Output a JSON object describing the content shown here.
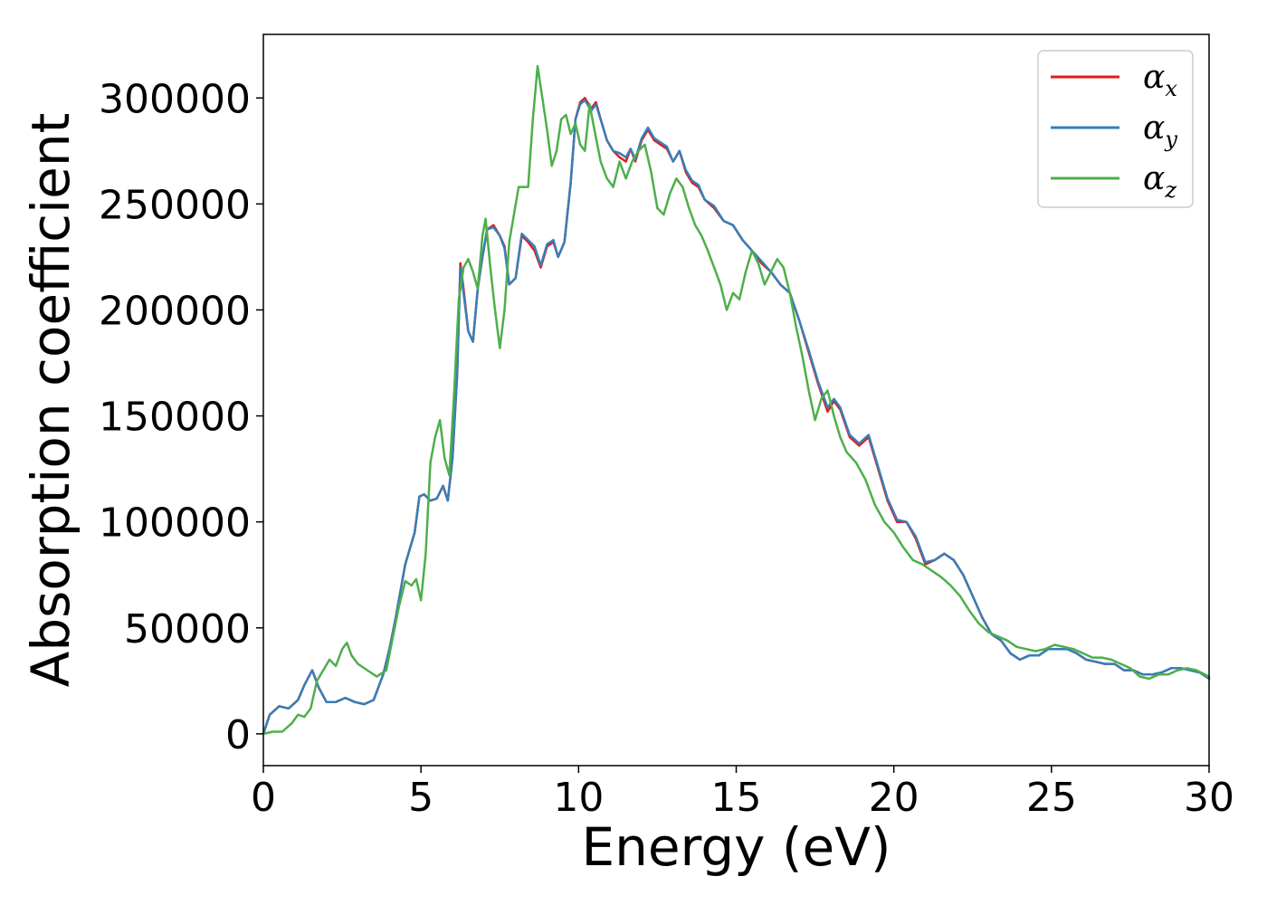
{
  "chart_data": {
    "type": "line",
    "title": "",
    "xlabel": "Energy (eV)",
    "ylabel": "Absorption coefficient",
    "xlim": [
      0,
      30
    ],
    "ylim": [
      -15000,
      330000
    ],
    "xticks": [
      "0",
      "5",
      "10",
      "15",
      "20",
      "25",
      "30"
    ],
    "yticks": [
      "0",
      "50000",
      "100000",
      "150000",
      "200000",
      "250000",
      "300000"
    ],
    "grid": false,
    "legend_position": "top-right",
    "series": [
      {
        "name": "α_x",
        "label_main": "α",
        "label_sub": "x",
        "color": "#e41a1c",
        "x": [
          0,
          0.2,
          0.5,
          0.8,
          1.1,
          1.3,
          1.55,
          1.75,
          2.0,
          2.3,
          2.6,
          2.9,
          3.2,
          3.5,
          3.8,
          4.0,
          4.2,
          4.5,
          4.8,
          4.95,
          5.1,
          5.3,
          5.5,
          5.7,
          5.85,
          6.0,
          6.15,
          6.25,
          6.35,
          6.5,
          6.65,
          6.8,
          6.95,
          7.1,
          7.3,
          7.5,
          7.65,
          7.8,
          8.0,
          8.2,
          8.4,
          8.6,
          8.8,
          9.0,
          9.2,
          9.35,
          9.55,
          9.75,
          9.9,
          10.05,
          10.2,
          10.4,
          10.55,
          10.7,
          10.9,
          11.1,
          11.3,
          11.5,
          11.65,
          11.8,
          12.0,
          12.2,
          12.4,
          12.6,
          12.8,
          13.0,
          13.2,
          13.4,
          13.6,
          13.8,
          14.0,
          14.3,
          14.6,
          14.9,
          15.2,
          15.5,
          15.8,
          16.1,
          16.4,
          16.7,
          17.0,
          17.3,
          17.6,
          17.9,
          18.1,
          18.3,
          18.6,
          18.9,
          19.2,
          19.5,
          19.8,
          20.1,
          20.4,
          20.7,
          21.0,
          21.3,
          21.6,
          21.9,
          22.2,
          22.5,
          22.8,
          23.1,
          23.4,
          23.7,
          24.0,
          24.3,
          24.6,
          24.9,
          25.2,
          25.5,
          25.8,
          26.1,
          26.4,
          26.7,
          27.0,
          27.3,
          27.6,
          27.9,
          28.2,
          28.5,
          28.8,
          29.1,
          29.4,
          29.7,
          30.0
        ],
        "y": [
          0,
          9000,
          13000,
          12000,
          16000,
          23000,
          30000,
          22000,
          15000,
          15000,
          17000,
          15000,
          14000,
          16000,
          28000,
          40000,
          55000,
          80000,
          95000,
          112000,
          113000,
          110000,
          111000,
          117000,
          110000,
          130000,
          170000,
          222000,
          210000,
          190000,
          185000,
          210000,
          225000,
          238000,
          240000,
          235000,
          230000,
          212000,
          215000,
          235000,
          232000,
          228000,
          220000,
          230000,
          232000,
          225000,
          232000,
          260000,
          290000,
          298000,
          300000,
          295000,
          298000,
          290000,
          280000,
          275000,
          272000,
          270000,
          276000,
          270000,
          280000,
          285000,
          280000,
          278000,
          276000,
          270000,
          275000,
          265000,
          260000,
          258000,
          252000,
          248000,
          242000,
          240000,
          233000,
          228000,
          222000,
          218000,
          212000,
          208000,
          195000,
          180000,
          165000,
          152000,
          157000,
          153000,
          140000,
          136000,
          140000,
          125000,
          110000,
          100000,
          100000,
          92000,
          80000,
          82000,
          85000,
          82000,
          75000,
          65000,
          55000,
          47000,
          44000,
          38000,
          35000,
          37000,
          37000,
          40000,
          40000,
          40000,
          38000,
          35000,
          34000,
          33000,
          33000,
          30000,
          30000,
          28000,
          28000,
          29000,
          31000,
          31000,
          30000,
          29000,
          26000
        ]
      },
      {
        "name": "α_y",
        "label_main": "α",
        "label_sub": "y",
        "color": "#377eb8",
        "x": [
          0,
          0.2,
          0.5,
          0.8,
          1.1,
          1.3,
          1.55,
          1.75,
          2.0,
          2.3,
          2.6,
          2.9,
          3.2,
          3.5,
          3.8,
          4.0,
          4.2,
          4.5,
          4.8,
          4.95,
          5.1,
          5.3,
          5.5,
          5.7,
          5.85,
          6.0,
          6.15,
          6.25,
          6.35,
          6.5,
          6.65,
          6.8,
          6.95,
          7.1,
          7.3,
          7.5,
          7.65,
          7.8,
          8.0,
          8.2,
          8.4,
          8.6,
          8.8,
          9.0,
          9.2,
          9.35,
          9.55,
          9.75,
          9.9,
          10.05,
          10.2,
          10.4,
          10.55,
          10.7,
          10.9,
          11.1,
          11.3,
          11.5,
          11.65,
          11.8,
          12.0,
          12.2,
          12.4,
          12.6,
          12.8,
          13.0,
          13.2,
          13.4,
          13.6,
          13.8,
          14.0,
          14.3,
          14.6,
          14.9,
          15.2,
          15.5,
          15.8,
          16.1,
          16.4,
          16.7,
          17.0,
          17.3,
          17.6,
          17.9,
          18.1,
          18.3,
          18.6,
          18.9,
          19.2,
          19.5,
          19.8,
          20.1,
          20.4,
          20.7,
          21.0,
          21.3,
          21.6,
          21.9,
          22.2,
          22.5,
          22.8,
          23.1,
          23.4,
          23.7,
          24.0,
          24.3,
          24.6,
          24.9,
          25.2,
          25.5,
          25.8,
          26.1,
          26.4,
          26.7,
          27.0,
          27.3,
          27.6,
          27.9,
          28.2,
          28.5,
          28.8,
          29.1,
          29.4,
          29.7,
          30.0
        ],
        "y": [
          0,
          9000,
          13000,
          12000,
          16000,
          23000,
          30000,
          22000,
          15000,
          15000,
          17000,
          15000,
          14000,
          16000,
          28000,
          40000,
          55000,
          80000,
          95000,
          112000,
          113000,
          110000,
          111000,
          117000,
          110000,
          130000,
          170000,
          220000,
          208000,
          190000,
          185000,
          210000,
          225000,
          238000,
          239000,
          235000,
          229000,
          212000,
          215000,
          236000,
          233000,
          230000,
          221000,
          231000,
          233000,
          225000,
          232000,
          260000,
          290000,
          297000,
          299000,
          294000,
          297000,
          290000,
          280000,
          275000,
          274000,
          272000,
          276000,
          271000,
          281000,
          286000,
          281000,
          279000,
          277000,
          270000,
          275000,
          266000,
          261000,
          259000,
          252000,
          249000,
          242000,
          240000,
          233000,
          228000,
          223000,
          218000,
          212000,
          208000,
          195000,
          181000,
          166000,
          154000,
          158000,
          154000,
          141000,
          137000,
          141000,
          126000,
          111000,
          101000,
          100000,
          93000,
          81000,
          82000,
          85000,
          82000,
          75000,
          65000,
          55000,
          47000,
          44000,
          38000,
          35000,
          37000,
          37000,
          40000,
          40000,
          40000,
          38000,
          35000,
          34000,
          33000,
          33000,
          30000,
          30000,
          28000,
          28000,
          29000,
          31000,
          31000,
          30000,
          29000,
          26000
        ]
      },
      {
        "name": "α_z",
        "label_main": "α",
        "label_sub": "z",
        "color": "#4daf4a",
        "x": [
          0,
          0.3,
          0.6,
          0.9,
          1.1,
          1.3,
          1.5,
          1.7,
          1.9,
          2.1,
          2.3,
          2.5,
          2.65,
          2.8,
          3.0,
          3.3,
          3.6,
          3.9,
          4.1,
          4.3,
          4.5,
          4.7,
          4.85,
          5.0,
          5.15,
          5.3,
          5.45,
          5.6,
          5.75,
          5.9,
          6.05,
          6.2,
          6.35,
          6.5,
          6.65,
          6.8,
          6.95,
          7.05,
          7.2,
          7.35,
          7.5,
          7.65,
          7.8,
          7.95,
          8.1,
          8.25,
          8.4,
          8.55,
          8.7,
          8.85,
          9.0,
          9.15,
          9.3,
          9.45,
          9.6,
          9.75,
          9.9,
          10.05,
          10.2,
          10.35,
          10.5,
          10.7,
          10.9,
          11.1,
          11.3,
          11.5,
          11.7,
          11.9,
          12.1,
          12.3,
          12.5,
          12.7,
          12.9,
          13.1,
          13.3,
          13.5,
          13.7,
          13.9,
          14.1,
          14.3,
          14.5,
          14.7,
          14.9,
          15.1,
          15.3,
          15.5,
          15.7,
          15.9,
          16.1,
          16.3,
          16.5,
          16.7,
          16.9,
          17.1,
          17.3,
          17.5,
          17.7,
          17.9,
          18.1,
          18.3,
          18.5,
          18.8,
          19.1,
          19.4,
          19.7,
          20.0,
          20.3,
          20.6,
          20.9,
          21.2,
          21.5,
          21.8,
          22.1,
          22.4,
          22.7,
          23.0,
          23.3,
          23.6,
          23.9,
          24.2,
          24.5,
          24.8,
          25.1,
          25.4,
          25.7,
          26.0,
          26.3,
          26.6,
          26.9,
          27.2,
          27.5,
          27.8,
          28.1,
          28.4,
          28.7,
          29.0,
          29.3,
          29.6,
          30.0
        ],
        "y": [
          0,
          1000,
          1000,
          5000,
          9000,
          8000,
          12000,
          25000,
          30000,
          35000,
          32000,
          40000,
          43000,
          37000,
          33000,
          30000,
          27000,
          30000,
          45000,
          60000,
          72000,
          70000,
          73000,
          63000,
          85000,
          128000,
          140000,
          148000,
          130000,
          122000,
          160000,
          205000,
          220000,
          224000,
          218000,
          210000,
          235000,
          243000,
          220000,
          200000,
          182000,
          200000,
          232000,
          245000,
          258000,
          258000,
          258000,
          290000,
          315000,
          300000,
          285000,
          268000,
          275000,
          290000,
          292000,
          283000,
          288000,
          278000,
          275000,
          297000,
          285000,
          270000,
          262000,
          258000,
          270000,
          262000,
          270000,
          275000,
          278000,
          265000,
          248000,
          245000,
          255000,
          262000,
          258000,
          248000,
          240000,
          235000,
          228000,
          220000,
          212000,
          200000,
          208000,
          205000,
          218000,
          228000,
          222000,
          212000,
          218000,
          224000,
          220000,
          208000,
          192000,
          178000,
          162000,
          148000,
          158000,
          162000,
          150000,
          140000,
          133000,
          128000,
          120000,
          108000,
          100000,
          95000,
          88000,
          82000,
          80000,
          77000,
          74000,
          70000,
          65000,
          58000,
          52000,
          48000,
          46000,
          44000,
          41000,
          40000,
          39000,
          40000,
          42000,
          41000,
          40000,
          38000,
          36000,
          36000,
          35000,
          33000,
          31000,
          27000,
          26000,
          28000,
          28000,
          30000,
          31000,
          30000,
          27000
        ]
      }
    ]
  }
}
